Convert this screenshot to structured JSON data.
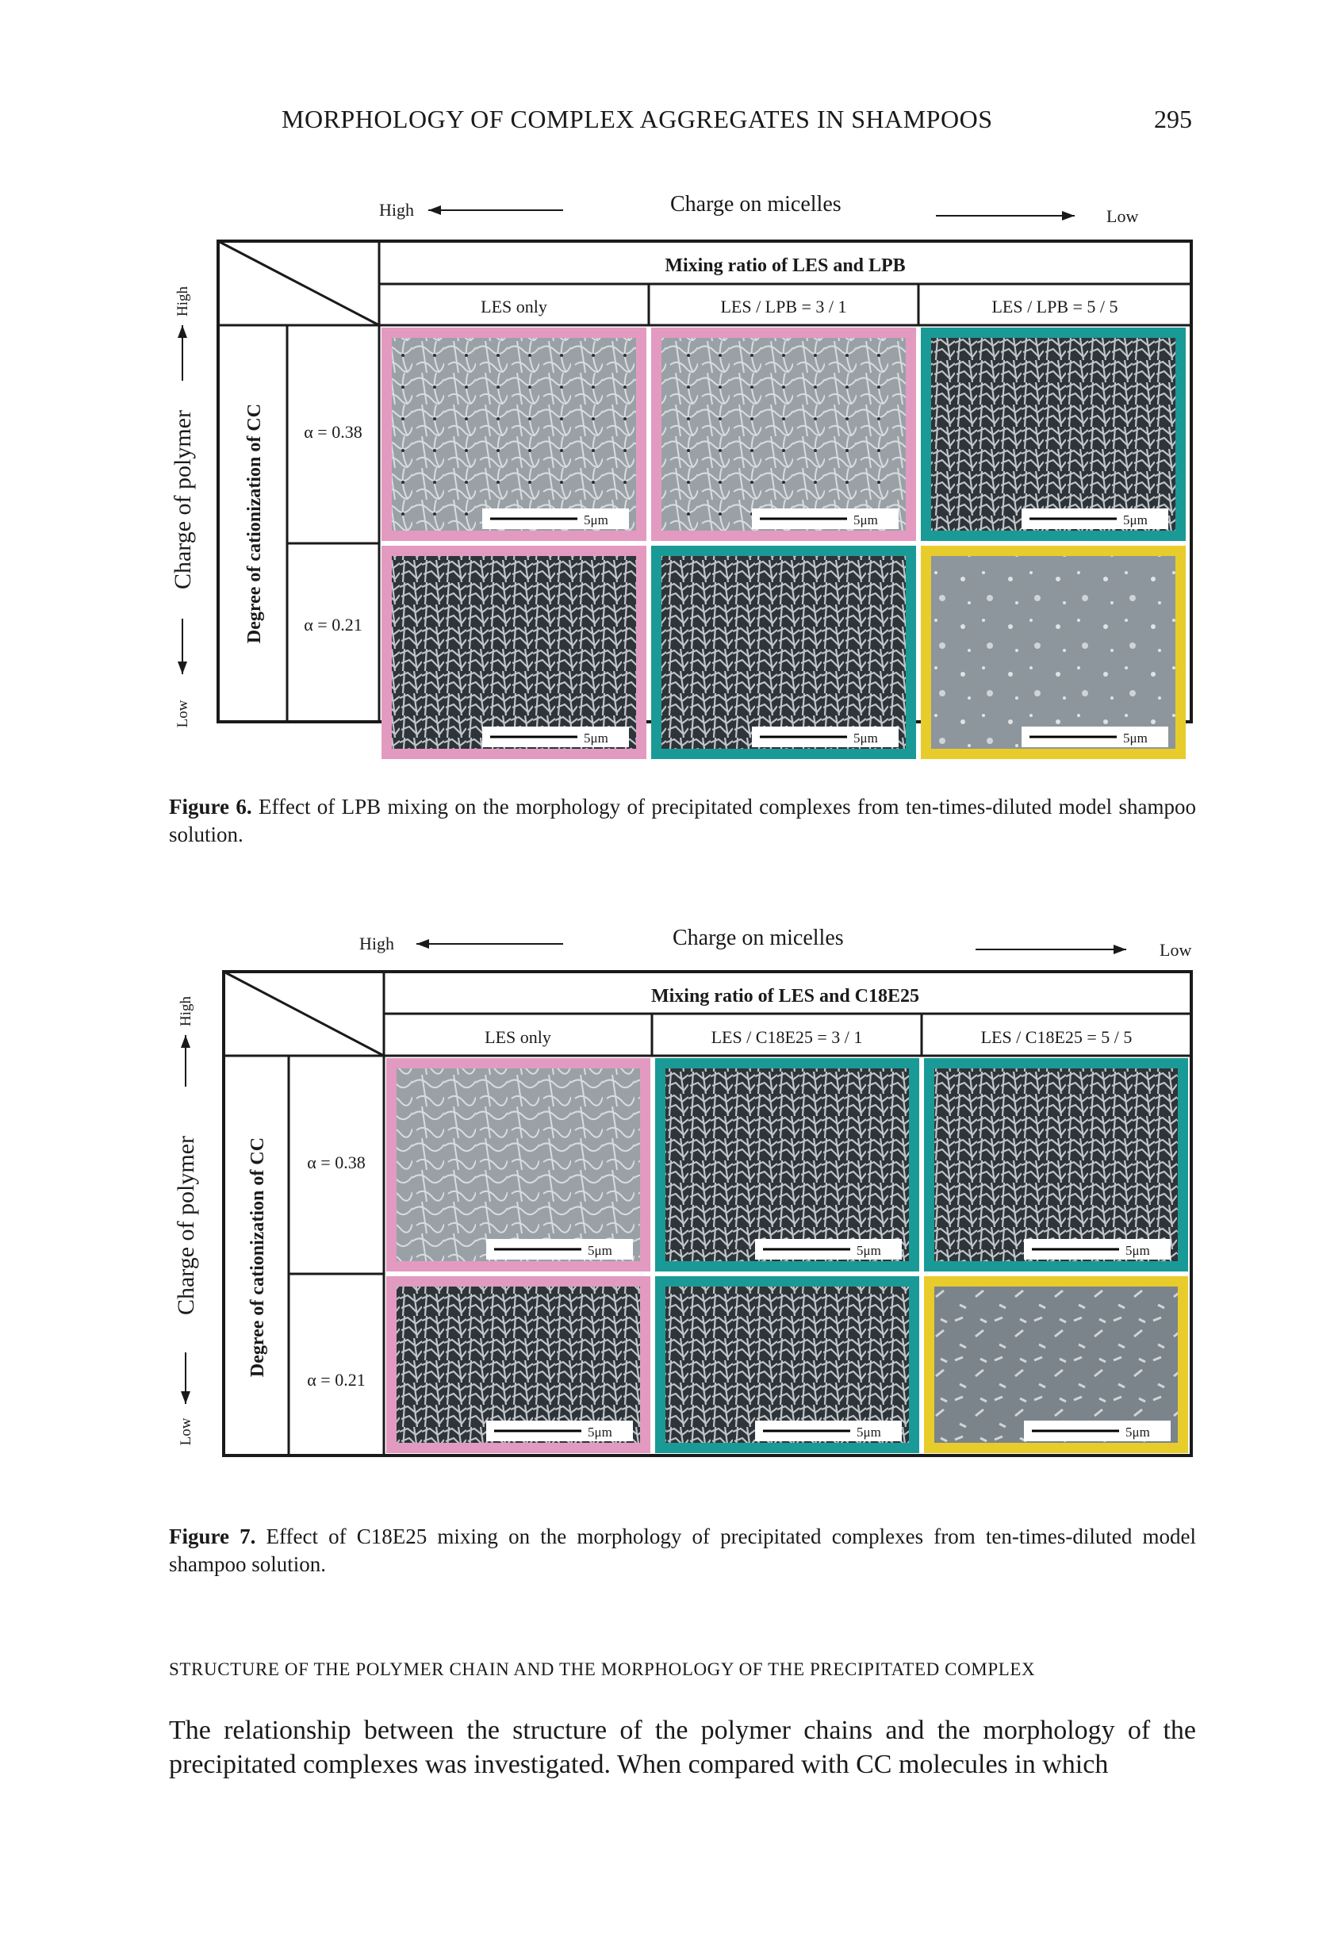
{
  "header": {
    "running_title": "MORPHOLOGY OF COMPLEX AGGREGATES IN SHAMPOOS",
    "page_number": "295"
  },
  "figure6": {
    "top_label": "Charge on micelles",
    "high": "High",
    "low": "Low",
    "side_label": "Charge of polymer",
    "row_header": "Degree of cationization of CC",
    "table_title": "Mixing ratio of LES and LPB",
    "columns": [
      "LES only",
      "LES / LPB = 3 / 1",
      "LES / LPB = 5 / 5"
    ],
    "rows": [
      "α = 0.38",
      "α = 0.21"
    ],
    "scale_bar": "5μm",
    "frame_colors": [
      [
        "#e39ac0",
        "#e39ac0",
        "#1a9a96"
      ],
      [
        "#e39ac0",
        "#1a9a96",
        "#e8cc2c"
      ]
    ],
    "caption_label": "Figure 6.",
    "caption_text": "Effect of LPB mixing on the morphology of precipitated complexes from ten-times-diluted model shampoo solution."
  },
  "figure7": {
    "top_label": "Charge on micelles",
    "high": "High",
    "low": "Low",
    "side_label": "Charge of polymer",
    "row_header": "Degree of cationization of CC",
    "table_title": "Mixing ratio of LES and C18E25",
    "columns": [
      "LES only",
      "LES / C18E25 = 3 / 1",
      "LES / C18E25 = 5 / 5"
    ],
    "rows": [
      "α = 0.38",
      "α = 0.21"
    ],
    "scale_bar": "5μm",
    "frame_colors": [
      [
        "#e39ac0",
        "#1a9a96",
        "#1a9a96"
      ],
      [
        "#e39ac0",
        "#1a9a96",
        "#e8cc2c"
      ]
    ],
    "caption_label": "Figure 7.",
    "caption_text": "Effect of C18E25 mixing on the morphology of precipitated complexes from ten-times-diluted model shampoo solution."
  },
  "section_heading": "STRUCTURE OF THE POLYMER CHAIN AND THE MORPHOLOGY OF THE PRECIPITATED COMPLEX",
  "body_text": "The relationship between the structure of the polymer chains and the morphology of the precipitated complexes was investigated. When compared with CC molecules in which"
}
